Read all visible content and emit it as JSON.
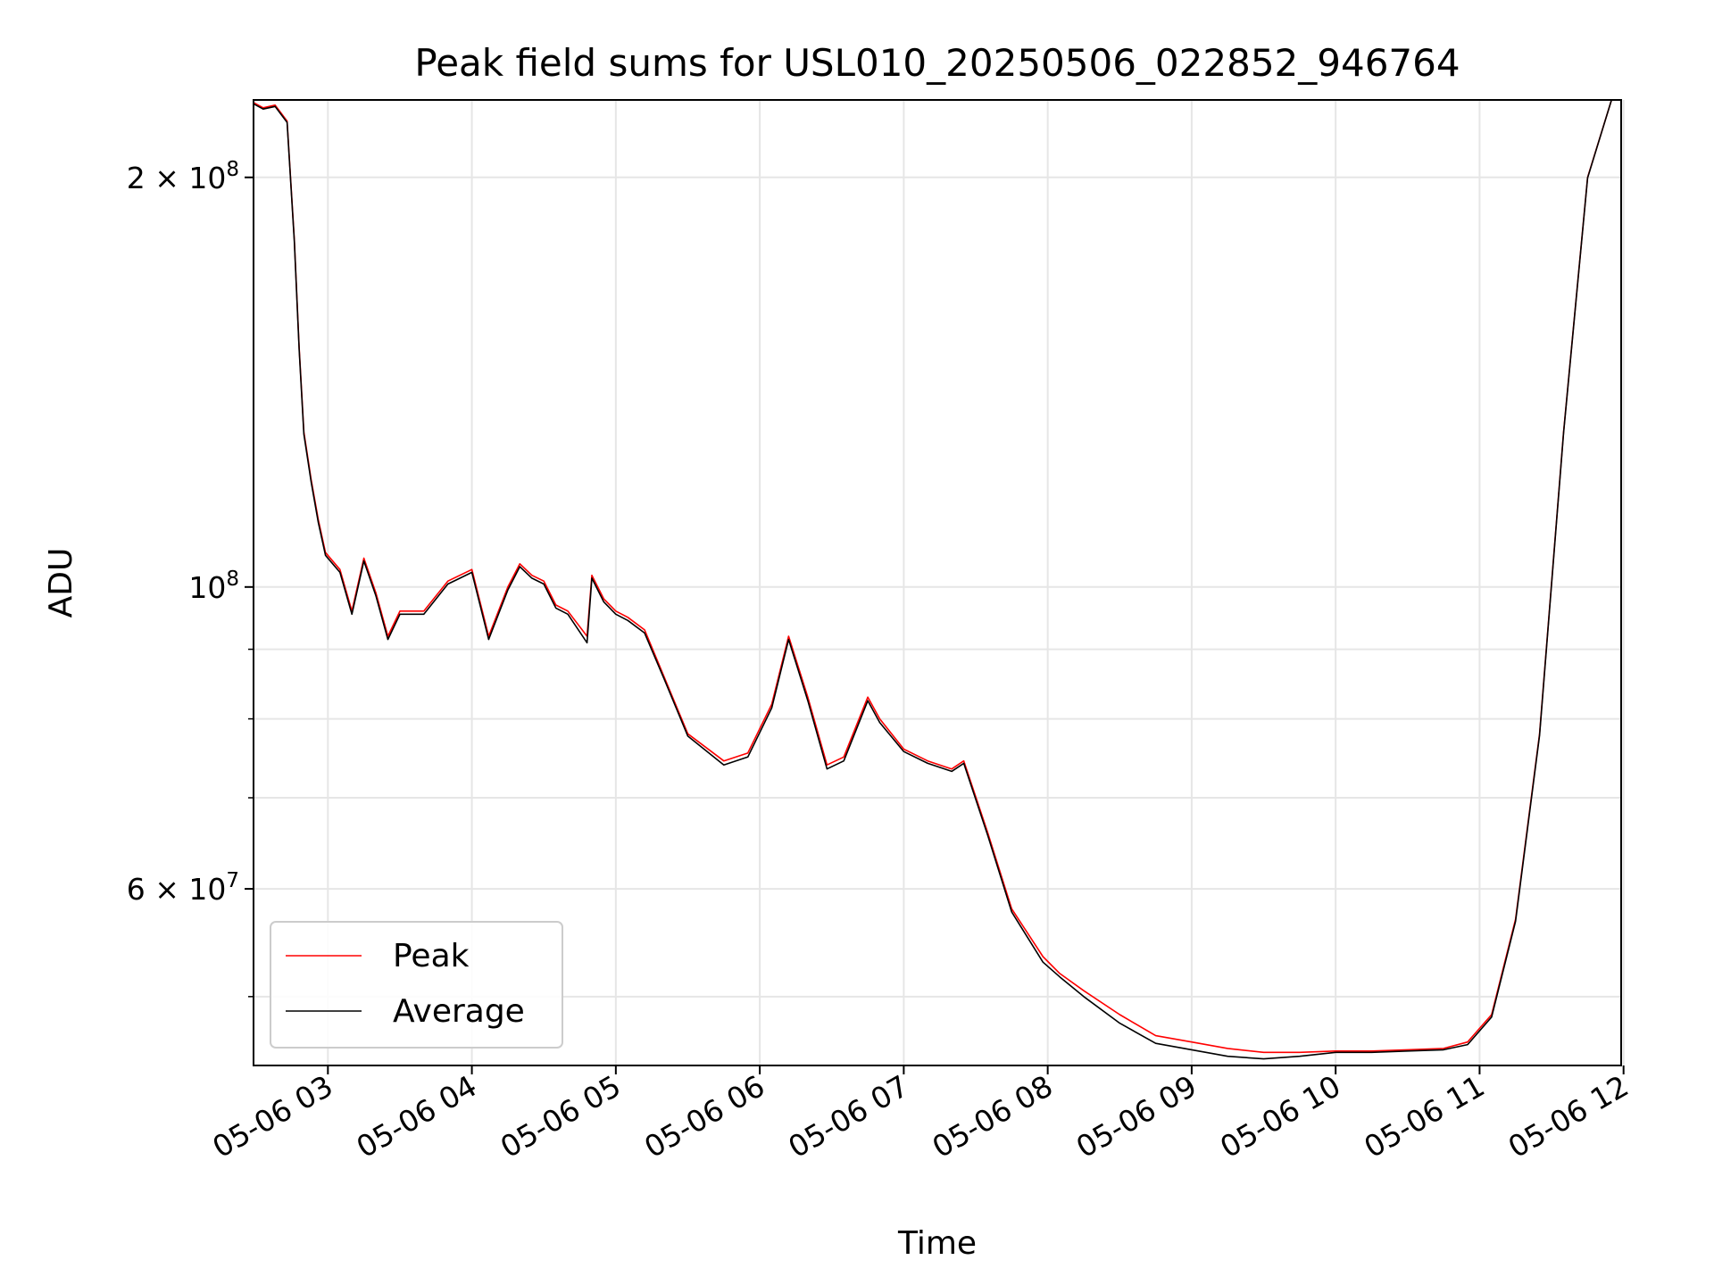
{
  "chart_data": {
    "type": "line",
    "title": "Peak field sums for USL010_20250506_022852_946764",
    "xlabel": "Time",
    "ylabel": "ADU",
    "y_scale": "log",
    "grid": true,
    "legend_position": "lower-left",
    "xlim": [
      "2025-05-06 02:29",
      "2025-05-06 11:59"
    ],
    "ylim": [
      44500000,
      228000000
    ],
    "x_ticks": [
      "05-06 03",
      "05-06 04",
      "05-06 05",
      "05-06 06",
      "05-06 07",
      "05-06 08",
      "05-06 09",
      "05-06 10",
      "05-06 11",
      "05-06 12"
    ],
    "y_ticks": [
      {
        "value": 200000000,
        "mantissa": "2",
        "exponent": "8"
      },
      {
        "value": 100000000,
        "mantissa": "",
        "exponent": "8"
      },
      {
        "value": 60000000,
        "mantissa": "6",
        "exponent": "7"
      }
    ],
    "y_minor_ticks": [
      50000000,
      70000000,
      80000000,
      90000000
    ],
    "series": [
      {
        "name": "Peak",
        "color": "#ff0000",
        "x": [
          "02:29",
          "02:33",
          "02:38",
          "02:43",
          "02:46",
          "02:48",
          "02:50",
          "02:53",
          "02:56",
          "02:59",
          "03:05",
          "03:10",
          "03:15",
          "03:20",
          "03:25",
          "03:30",
          "03:40",
          "03:50",
          "04:00",
          "04:07",
          "04:15",
          "04:20",
          "04:25",
          "04:30",
          "04:35",
          "04:40",
          "04:48",
          "04:50",
          "04:55",
          "05:00",
          "05:05",
          "05:12",
          "05:20",
          "05:30",
          "05:45",
          "05:55",
          "06:05",
          "06:12",
          "06:20",
          "06:28",
          "06:35",
          "06:45",
          "06:50",
          "07:00",
          "07:10",
          "07:20",
          "07:25",
          "07:35",
          "07:45",
          "07:58",
          "08:05",
          "08:15",
          "08:30",
          "08:45",
          "09:00",
          "09:15",
          "09:30",
          "09:45",
          "10:00",
          "10:15",
          "10:30",
          "10:45",
          "10:55",
          "11:05",
          "11:15",
          "11:25",
          "11:35",
          "11:45",
          "11:55"
        ],
        "y": [
          227000000,
          225000000,
          226000000,
          220000000,
          180000000,
          150000000,
          130000000,
          120000000,
          112000000,
          106000000,
          103000000,
          96000000,
          105000000,
          99000000,
          92000000,
          96000000,
          96000000,
          101000000,
          103000000,
          92000000,
          100000000,
          104000000,
          102000000,
          101000000,
          97000000,
          96000000,
          92000000,
          102000000,
          98000000,
          96000000,
          95000000,
          93000000,
          86000000,
          78000000,
          74500000,
          75500000,
          82000000,
          92000000,
          83000000,
          74000000,
          75000000,
          83000000,
          80000000,
          76000000,
          74500000,
          73500000,
          74500000,
          66000000,
          58000000,
          53500000,
          52000000,
          50500000,
          48500000,
          46800000,
          46300000,
          45800000,
          45500000,
          45500000,
          45600000,
          45600000,
          45700000,
          45800000,
          46300000,
          48500000,
          57000000,
          78000000,
          130000000,
          200000000,
          228000000
        ]
      },
      {
        "name": "Average",
        "color": "#000000",
        "x": [
          "02:29",
          "02:33",
          "02:38",
          "02:43",
          "02:46",
          "02:48",
          "02:50",
          "02:53",
          "02:56",
          "02:59",
          "03:05",
          "03:10",
          "03:15",
          "03:20",
          "03:25",
          "03:30",
          "03:40",
          "03:50",
          "04:00",
          "04:07",
          "04:15",
          "04:20",
          "04:25",
          "04:30",
          "04:35",
          "04:40",
          "04:48",
          "04:50",
          "04:55",
          "05:00",
          "05:05",
          "05:12",
          "05:20",
          "05:30",
          "05:45",
          "05:55",
          "06:05",
          "06:12",
          "06:20",
          "06:28",
          "06:35",
          "06:45",
          "06:50",
          "07:00",
          "07:10",
          "07:20",
          "07:25",
          "07:35",
          "07:45",
          "07:58",
          "08:05",
          "08:15",
          "08:30",
          "08:45",
          "09:00",
          "09:15",
          "09:30",
          "09:45",
          "10:00",
          "10:15",
          "10:30",
          "10:45",
          "10:55",
          "11:05",
          "11:15",
          "11:25",
          "11:35",
          "11:45",
          "11:55"
        ],
        "y": [
          226500000,
          224500000,
          225500000,
          219500000,
          179500000,
          149500000,
          129500000,
          119500000,
          111500000,
          105500000,
          102500000,
          95500000,
          104500000,
          98500000,
          91500000,
          95500000,
          95500000,
          100500000,
          102500000,
          91500000,
          99500000,
          103500000,
          101500000,
          100500000,
          96500000,
          95500000,
          91000000,
          101500000,
          97500000,
          95500000,
          94500000,
          92500000,
          85700000,
          77700000,
          74000000,
          75000000,
          81500000,
          91500000,
          82500000,
          73500000,
          74500000,
          82500000,
          79500000,
          75700000,
          74200000,
          73200000,
          74200000,
          65700000,
          57700000,
          53000000,
          51700000,
          50000000,
          47800000,
          46200000,
          45700000,
          45200000,
          45000000,
          45200000,
          45500000,
          45500000,
          45600000,
          45700000,
          46100000,
          48300000,
          56800000,
          77800000,
          129800000,
          199800000,
          228000000
        ]
      }
    ]
  }
}
